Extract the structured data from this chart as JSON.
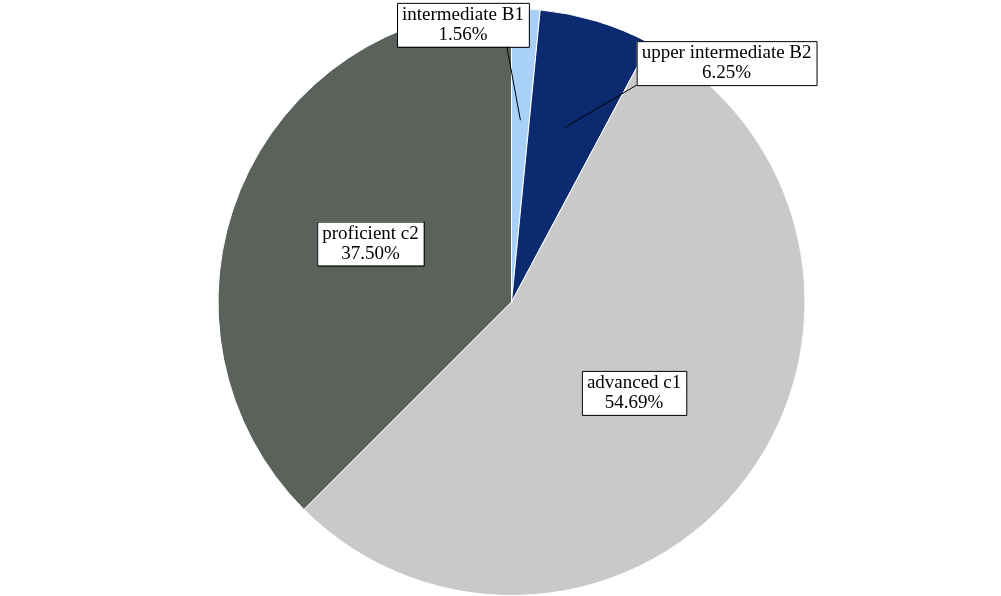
{
  "chart_data": {
    "type": "pie",
    "categories": [
      "intermediate B1",
      "upper intermediate B2",
      "advanced c1",
      "proficient c2"
    ],
    "values": [
      1.56,
      6.25,
      54.69,
      37.5
    ],
    "value_labels": [
      "1.56%",
      "6.25%",
      "54.69%",
      "37.50%"
    ],
    "colors": [
      "#a9d1f7",
      "#0b2a6f",
      "#c9c9c9",
      "#5a625b"
    ],
    "legend": false
  }
}
